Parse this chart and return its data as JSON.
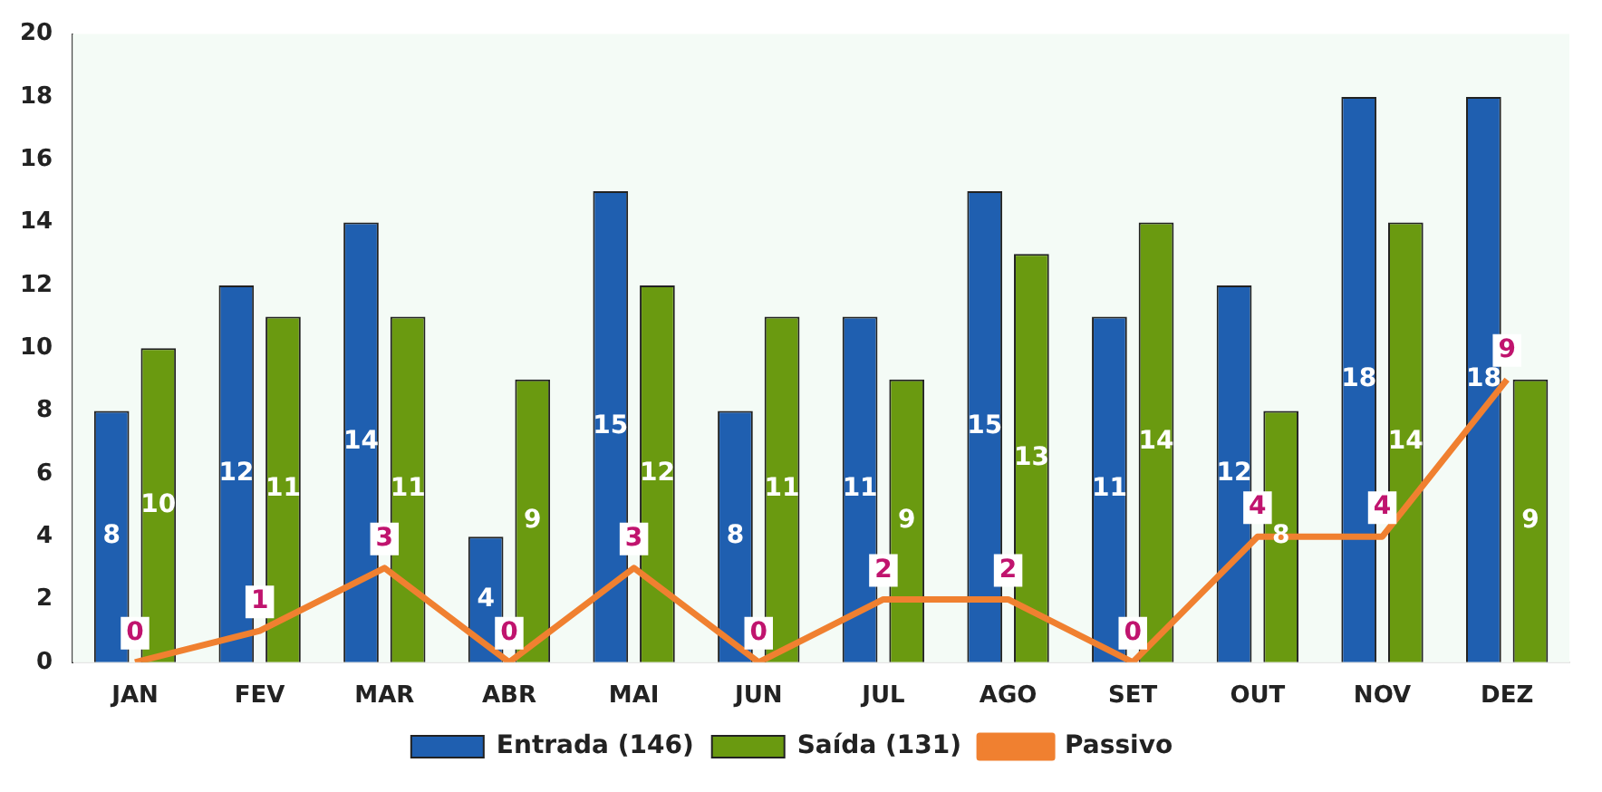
{
  "chart_data": {
    "type": "bar",
    "categories": [
      "JAN",
      "FEV",
      "MAR",
      "ABR",
      "MAI",
      "JUN",
      "JUL",
      "AGO",
      "SET",
      "OUT",
      "NOV",
      "DEZ"
    ],
    "series": [
      {
        "name": "Entrada (146)",
        "color": "#1f5fb0",
        "values": [
          8,
          12,
          14,
          4,
          15,
          8,
          11,
          15,
          11,
          12,
          18,
          18
        ]
      },
      {
        "name": "Saída (131)",
        "color": "#6a9a10",
        "values": [
          10,
          11,
          11,
          9,
          12,
          11,
          9,
          13,
          14,
          8,
          14,
          9
        ]
      },
      {
        "name": "Passivo",
        "type": "line",
        "color": "#f08030",
        "values": [
          0,
          1,
          3,
          0,
          3,
          0,
          2,
          2,
          0,
          4,
          4,
          9
        ]
      }
    ],
    "ylim": [
      0,
      20
    ],
    "yticks": [
      0,
      2,
      4,
      6,
      8,
      10,
      12,
      14,
      16,
      18,
      20
    ],
    "grid": false,
    "legend": "bottom",
    "data_labels": true,
    "marker": "none"
  }
}
